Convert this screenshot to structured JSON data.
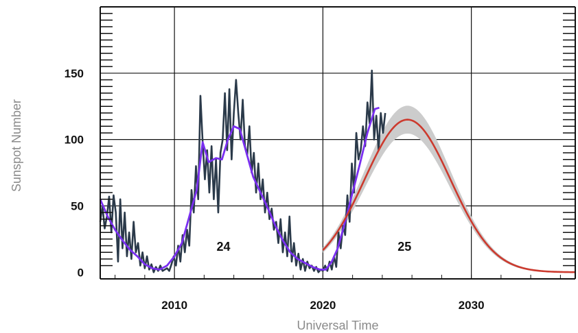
{
  "chart_data": {
    "type": "line",
    "xlabel": "Universal Time",
    "ylabel": "Sunspot Number",
    "xlim": [
      2005,
      2037
    ],
    "ylim": [
      -5,
      200
    ],
    "x_ticks": [
      2010,
      2020,
      2030
    ],
    "y_ticks": [
      0,
      50,
      100,
      150
    ],
    "grid": true,
    "cycle_labels": [
      {
        "text": "24",
        "x": 2013.3,
        "y": 10
      },
      {
        "text": "25",
        "x": 2025.5,
        "y": 10
      }
    ],
    "series": [
      {
        "kind": "monthly",
        "color": "#2b3a4a",
        "points": [
          [
            2005.0,
            38
          ],
          [
            2005.15,
            50
          ],
          [
            2005.3,
            33
          ],
          [
            2005.45,
            42
          ],
          [
            2005.6,
            57
          ],
          [
            2005.75,
            30
          ],
          [
            2005.9,
            58
          ],
          [
            2006.05,
            45
          ],
          [
            2006.2,
            8
          ],
          [
            2006.35,
            55
          ],
          [
            2006.5,
            18
          ],
          [
            2006.65,
            45
          ],
          [
            2006.8,
            12
          ],
          [
            2006.95,
            30
          ],
          [
            2007.1,
            10
          ],
          [
            2007.25,
            38
          ],
          [
            2007.4,
            15
          ],
          [
            2007.55,
            22
          ],
          [
            2007.7,
            5
          ],
          [
            2007.85,
            15
          ],
          [
            2008.0,
            3
          ],
          [
            2008.15,
            12
          ],
          [
            2008.3,
            2
          ],
          [
            2008.45,
            6
          ],
          [
            2008.6,
            0
          ],
          [
            2008.75,
            4
          ],
          [
            2008.9,
            1
          ],
          [
            2009.05,
            5
          ],
          [
            2009.2,
            1
          ],
          [
            2009.35,
            2
          ],
          [
            2009.5,
            3
          ],
          [
            2009.65,
            1
          ],
          [
            2009.8,
            6
          ],
          [
            2009.95,
            12
          ],
          [
            2010.1,
            5
          ],
          [
            2010.25,
            20
          ],
          [
            2010.4,
            8
          ],
          [
            2010.55,
            28
          ],
          [
            2010.7,
            15
          ],
          [
            2010.85,
            32
          ],
          [
            2011.0,
            20
          ],
          [
            2011.15,
            62
          ],
          [
            2011.3,
            45
          ],
          [
            2011.45,
            80
          ],
          [
            2011.6,
            55
          ],
          [
            2011.75,
            133
          ],
          [
            2011.9,
            98
          ],
          [
            2012.05,
            70
          ],
          [
            2012.2,
            92
          ],
          [
            2012.35,
            60
          ],
          [
            2012.5,
            95
          ],
          [
            2012.65,
            55
          ],
          [
            2012.8,
            85
          ],
          [
            2012.95,
            45
          ],
          [
            2013.1,
            90
          ],
          [
            2013.25,
            100
          ],
          [
            2013.4,
            135
          ],
          [
            2013.55,
            92
          ],
          [
            2013.7,
            138
          ],
          [
            2013.85,
            85
          ],
          [
            2014.0,
            120
          ],
          [
            2014.15,
            145
          ],
          [
            2014.3,
            120
          ],
          [
            2014.45,
            100
          ],
          [
            2014.6,
            130
          ],
          [
            2014.75,
            95
          ],
          [
            2014.9,
            88
          ],
          [
            2015.05,
            110
          ],
          [
            2015.2,
            75
          ],
          [
            2015.35,
            90
          ],
          [
            2015.5,
            60
          ],
          [
            2015.65,
            82
          ],
          [
            2015.8,
            55
          ],
          [
            2015.95,
            70
          ],
          [
            2016.1,
            45
          ],
          [
            2016.25,
            60
          ],
          [
            2016.4,
            40
          ],
          [
            2016.55,
            48
          ],
          [
            2016.7,
            32
          ],
          [
            2016.85,
            38
          ],
          [
            2017.0,
            22
          ],
          [
            2017.15,
            40
          ],
          [
            2017.3,
            15
          ],
          [
            2017.45,
            30
          ],
          [
            2017.6,
            12
          ],
          [
            2017.75,
            42
          ],
          [
            2017.9,
            8
          ],
          [
            2018.05,
            22
          ],
          [
            2018.2,
            5
          ],
          [
            2018.35,
            14
          ],
          [
            2018.5,
            2
          ],
          [
            2018.65,
            10
          ],
          [
            2018.8,
            1
          ],
          [
            2018.95,
            8
          ],
          [
            2019.1,
            3
          ],
          [
            2019.25,
            5
          ],
          [
            2019.4,
            1
          ],
          [
            2019.55,
            4
          ],
          [
            2019.7,
            0
          ],
          [
            2019.85,
            2
          ],
          [
            2020.0,
            1
          ],
          [
            2020.15,
            5
          ],
          [
            2020.3,
            1
          ],
          [
            2020.45,
            8
          ],
          [
            2020.6,
            2
          ],
          [
            2020.75,
            12
          ],
          [
            2020.9,
            4
          ],
          [
            2021.05,
            30
          ],
          [
            2021.2,
            18
          ],
          [
            2021.35,
            35
          ],
          [
            2021.5,
            28
          ],
          [
            2021.65,
            58
          ],
          [
            2021.8,
            38
          ],
          [
            2021.95,
            82
          ],
          [
            2022.1,
            60
          ],
          [
            2022.25,
            105
          ],
          [
            2022.4,
            85
          ],
          [
            2022.55,
            92
          ],
          [
            2022.7,
            110
          ],
          [
            2022.85,
            95
          ],
          [
            2023.0,
            128
          ],
          [
            2023.15,
            112
          ],
          [
            2023.3,
            152
          ],
          [
            2023.45,
            100
          ],
          [
            2023.6,
            118
          ],
          [
            2023.75,
            92
          ],
          [
            2023.9,
            120
          ],
          [
            2024.05,
            105
          ],
          [
            2024.2,
            120
          ]
        ]
      },
      {
        "kind": "smoothed",
        "color": "#7a2ff0",
        "points": [
          [
            2005.0,
            55
          ],
          [
            2005.5,
            42
          ],
          [
            2006.0,
            32
          ],
          [
            2006.5,
            24
          ],
          [
            2007.0,
            17
          ],
          [
            2007.5,
            12
          ],
          [
            2008.0,
            6
          ],
          [
            2008.5,
            3
          ],
          [
            2009.0,
            2
          ],
          [
            2009.5,
            5
          ],
          [
            2010.0,
            12
          ],
          [
            2010.5,
            22
          ],
          [
            2011.0,
            42
          ],
          [
            2011.5,
            62
          ],
          [
            2011.9,
            98
          ],
          [
            2012.3,
            83
          ],
          [
            2012.8,
            86
          ],
          [
            2013.2,
            85
          ],
          [
            2013.6,
            100
          ],
          [
            2014.0,
            110
          ],
          [
            2014.4,
            108
          ],
          [
            2014.8,
            92
          ],
          [
            2015.3,
            72
          ],
          [
            2015.8,
            60
          ],
          [
            2016.3,
            48
          ],
          [
            2016.8,
            35
          ],
          [
            2017.3,
            24
          ],
          [
            2017.8,
            15
          ],
          [
            2018.3,
            10
          ],
          [
            2018.8,
            7
          ],
          [
            2019.3,
            4
          ],
          [
            2019.8,
            2
          ],
          [
            2020.2,
            2
          ],
          [
            2020.6,
            8
          ],
          [
            2021.0,
            18
          ],
          [
            2021.5,
            38
          ],
          [
            2022.0,
            60
          ],
          [
            2022.5,
            82
          ],
          [
            2023.0,
            105
          ],
          [
            2023.5,
            123
          ],
          [
            2023.8,
            124
          ]
        ]
      },
      {
        "kind": "predicted",
        "color": "#cc3a2e",
        "band_color": "#cccccc",
        "peak_x": 2025.7,
        "peak_y": 115,
        "start_x": 2020.0,
        "end_x": 2037.0,
        "band_half_width": 10
      }
    ]
  }
}
